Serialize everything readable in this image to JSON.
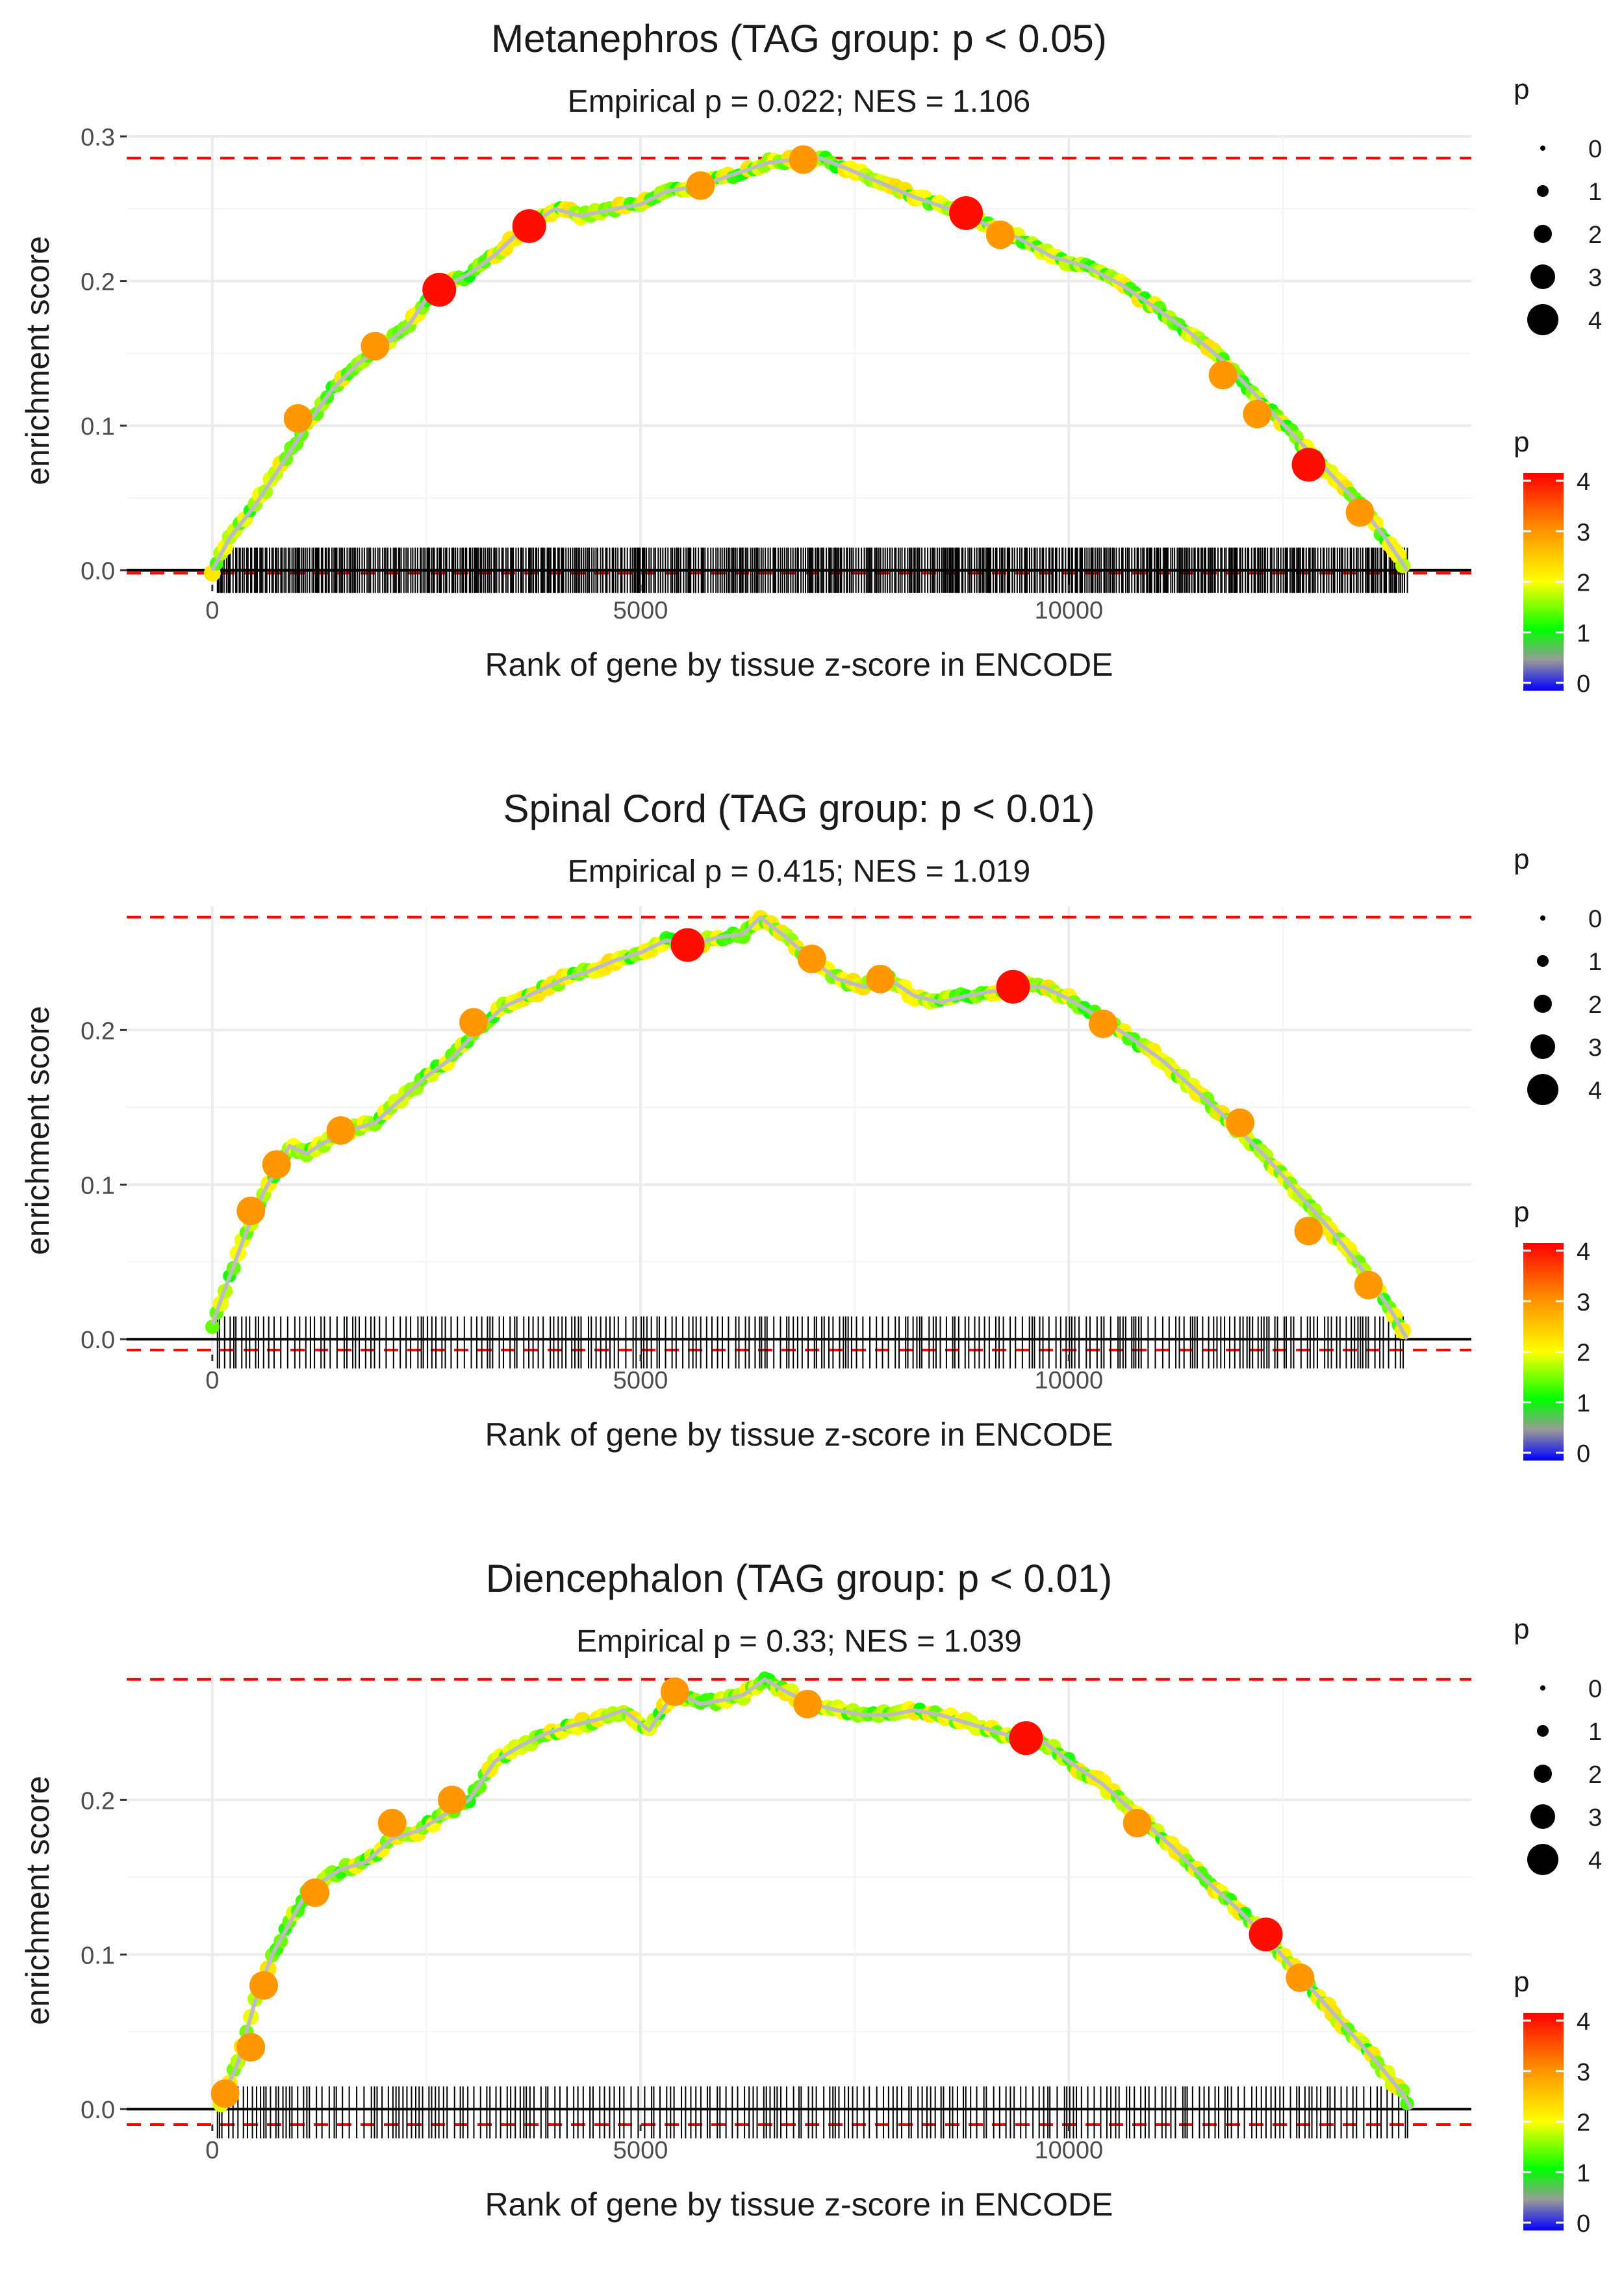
{
  "chart_data": [
    {
      "type": "line",
      "title": "Metanephros (TAG group: p < 0.05)",
      "subtitle": "Empirical p = 0.022; NES = 1.106",
      "xlabel": "Rank of gene by tissue z-score in ENCODE",
      "ylabel": "enrichment score",
      "xlim": [
        -1000,
        14700
      ],
      "ylim": [
        -0.01,
        0.3
      ],
      "x_ticks": [
        0,
        5000,
        10000
      ],
      "y_ticks": [
        0.0,
        0.1,
        0.2,
        0.3
      ],
      "x_tick_labels": [
        "0",
        "5000",
        "10000"
      ],
      "y_tick_labels": [
        "0.0",
        "0.1",
        "0.2",
        "0.3"
      ],
      "max_es": 0.285,
      "min_es": -0.002,
      "gene_count": 14000,
      "hit_density": "dense",
      "curve": [
        [
          0,
          0
        ],
        [
          200,
          0.022
        ],
        [
          500,
          0.045
        ],
        [
          800,
          0.072
        ],
        [
          1100,
          0.1
        ],
        [
          1400,
          0.125
        ],
        [
          1700,
          0.143
        ],
        [
          2000,
          0.155
        ],
        [
          2300,
          0.17
        ],
        [
          2500,
          0.188
        ],
        [
          2700,
          0.196
        ],
        [
          3000,
          0.205
        ],
        [
          3300,
          0.218
        ],
        [
          3600,
          0.235
        ],
        [
          3800,
          0.242
        ],
        [
          4000,
          0.25
        ],
        [
          4300,
          0.245
        ],
        [
          4700,
          0.25
        ],
        [
          5000,
          0.253
        ],
        [
          5300,
          0.262
        ],
        [
          5600,
          0.265
        ],
        [
          5900,
          0.27
        ],
        [
          6200,
          0.276
        ],
        [
          6500,
          0.282
        ],
        [
          6800,
          0.284
        ],
        [
          7100,
          0.285
        ],
        [
          7400,
          0.278
        ],
        [
          7800,
          0.268
        ],
        [
          8200,
          0.258
        ],
        [
          8600,
          0.25
        ],
        [
          9000,
          0.24
        ],
        [
          9400,
          0.23
        ],
        [
          9800,
          0.217
        ],
        [
          10200,
          0.21
        ],
        [
          10600,
          0.198
        ],
        [
          11000,
          0.182
        ],
        [
          11400,
          0.165
        ],
        [
          11800,
          0.145
        ],
        [
          12200,
          0.12
        ],
        [
          12600,
          0.095
        ],
        [
          13000,
          0.07
        ],
        [
          13400,
          0.045
        ],
        [
          13700,
          0.022
        ],
        [
          13950,
          0
        ]
      ],
      "highlights": [
        [
          2650,
          0.194,
          4
        ],
        [
          3700,
          0.238,
          4
        ],
        [
          8800,
          0.247,
          4
        ],
        [
          12800,
          0.073,
          4
        ],
        [
          1000,
          0.105,
          3
        ],
        [
          1900,
          0.155,
          3
        ],
        [
          5700,
          0.266,
          3
        ],
        [
          6900,
          0.284,
          3
        ],
        [
          9200,
          0.232,
          3
        ],
        [
          11800,
          0.135,
          3
        ],
        [
          12200,
          0.108,
          3
        ],
        [
          13400,
          0.04,
          3
        ]
      ],
      "legend_size": {
        "title": "p",
        "labels": [
          "0",
          "1",
          "2",
          "3",
          "4"
        ]
      },
      "legend_color": {
        "title": "p",
        "labels": [
          "4",
          "3",
          "2",
          "1",
          "0"
        ],
        "colors": [
          "#ff0000",
          "#ff8c00",
          "#ffff00",
          "#00ff00",
          "#999999",
          "#0000ff"
        ]
      }
    },
    {
      "type": "line",
      "title": "Spinal Cord (TAG group: p < 0.01)",
      "subtitle": "Empirical p = 0.415; NES = 1.019",
      "xlabel": "Rank of gene by tissue z-score in ENCODE",
      "ylabel": "enrichment score",
      "xlim": [
        -1000,
        14700
      ],
      "ylim": [
        -0.01,
        0.28
      ],
      "x_ticks": [
        0,
        5000,
        10000
      ],
      "y_ticks": [
        0.0,
        0.1,
        0.2
      ],
      "x_tick_labels": [
        "0",
        "5000",
        "10000"
      ],
      "y_tick_labels": [
        "0.0",
        "0.1",
        "0.2"
      ],
      "max_es": 0.273,
      "min_es": -0.007,
      "gene_count": 14000,
      "hit_density": "medium",
      "curve": [
        [
          0,
          0.01
        ],
        [
          200,
          0.04
        ],
        [
          400,
          0.07
        ],
        [
          600,
          0.095
        ],
        [
          900,
          0.125
        ],
        [
          1100,
          0.12
        ],
        [
          1300,
          0.127
        ],
        [
          1600,
          0.135
        ],
        [
          1900,
          0.14
        ],
        [
          2200,
          0.155
        ],
        [
          2500,
          0.17
        ],
        [
          2800,
          0.182
        ],
        [
          3100,
          0.2
        ],
        [
          3400,
          0.215
        ],
        [
          3800,
          0.225
        ],
        [
          4100,
          0.233
        ],
        [
          4400,
          0.238
        ],
        [
          4700,
          0.245
        ],
        [
          5000,
          0.25
        ],
        [
          5300,
          0.258
        ],
        [
          5600,
          0.255
        ],
        [
          5900,
          0.26
        ],
        [
          6200,
          0.262
        ],
        [
          6400,
          0.273
        ],
        [
          6700,
          0.26
        ],
        [
          7000,
          0.245
        ],
        [
          7300,
          0.233
        ],
        [
          7600,
          0.228
        ],
        [
          7900,
          0.233
        ],
        [
          8200,
          0.222
        ],
        [
          8500,
          0.218
        ],
        [
          8800,
          0.222
        ],
        [
          9100,
          0.225
        ],
        [
          9400,
          0.228
        ],
        [
          9700,
          0.228
        ],
        [
          10000,
          0.22
        ],
        [
          10300,
          0.21
        ],
        [
          10700,
          0.196
        ],
        [
          11100,
          0.18
        ],
        [
          11500,
          0.16
        ],
        [
          11900,
          0.14
        ],
        [
          12300,
          0.118
        ],
        [
          12700,
          0.093
        ],
        [
          13100,
          0.068
        ],
        [
          13500,
          0.04
        ],
        [
          13800,
          0.015
        ],
        [
          13950,
          0
        ]
      ],
      "highlights": [
        [
          5550,
          0.255,
          4
        ],
        [
          9350,
          0.228,
          4
        ],
        [
          450,
          0.083,
          3
        ],
        [
          750,
          0.113,
          3
        ],
        [
          1500,
          0.135,
          3
        ],
        [
          3050,
          0.205,
          3
        ],
        [
          7000,
          0.246,
          3
        ],
        [
          7800,
          0.233,
          3
        ],
        [
          10400,
          0.204,
          3
        ],
        [
          12000,
          0.14,
          3
        ],
        [
          12800,
          0.07,
          3
        ],
        [
          13500,
          0.035,
          3
        ]
      ],
      "legend_size": {
        "title": "p",
        "labels": [
          "0",
          "1",
          "2",
          "3",
          "4"
        ]
      },
      "legend_color": {
        "title": "p",
        "labels": [
          "4",
          "3",
          "2",
          "1",
          "0"
        ],
        "colors": [
          "#ff0000",
          "#ff8c00",
          "#ffff00",
          "#00ff00",
          "#999999",
          "#0000ff"
        ]
      }
    },
    {
      "type": "line",
      "title": "Diencephalon (TAG group: p < 0.01)",
      "subtitle": "Empirical p = 0.33; NES = 1.039",
      "xlabel": "Rank of gene by tissue z-score in ENCODE",
      "ylabel": "enrichment score",
      "xlim": [
        -1000,
        14700
      ],
      "ylim": [
        -0.01,
        0.28
      ],
      "x_ticks": [
        0,
        5000,
        10000
      ],
      "y_ticks": [
        0.0,
        0.1,
        0.2
      ],
      "x_tick_labels": [
        "0",
        "5000",
        "10000"
      ],
      "y_tick_labels": [
        "0.0",
        "0.1",
        "0.2"
      ],
      "max_es": 0.278,
      "min_es": -0.01,
      "gene_count": 14000,
      "hit_density": "medium",
      "curve": [
        [
          100,
          0.005
        ],
        [
          300,
          0.03
        ],
        [
          500,
          0.07
        ],
        [
          700,
          0.1
        ],
        [
          900,
          0.12
        ],
        [
          1100,
          0.14
        ],
        [
          1300,
          0.148
        ],
        [
          1500,
          0.155
        ],
        [
          1800,
          0.16
        ],
        [
          2100,
          0.175
        ],
        [
          2400,
          0.18
        ],
        [
          2700,
          0.19
        ],
        [
          3000,
          0.2
        ],
        [
          3300,
          0.225
        ],
        [
          3600,
          0.235
        ],
        [
          3900,
          0.243
        ],
        [
          4200,
          0.248
        ],
        [
          4500,
          0.252
        ],
        [
          4800,
          0.258
        ],
        [
          5100,
          0.245
        ],
        [
          5400,
          0.27
        ],
        [
          5700,
          0.262
        ],
        [
          6000,
          0.265
        ],
        [
          6200,
          0.268
        ],
        [
          6450,
          0.278
        ],
        [
          6700,
          0.27
        ],
        [
          7000,
          0.262
        ],
        [
          7300,
          0.258
        ],
        [
          7600,
          0.255
        ],
        [
          7900,
          0.255
        ],
        [
          8200,
          0.258
        ],
        [
          8500,
          0.255
        ],
        [
          8800,
          0.25
        ],
        [
          9100,
          0.245
        ],
        [
          9400,
          0.24
        ],
        [
          9700,
          0.238
        ],
        [
          10000,
          0.225
        ],
        [
          10400,
          0.21
        ],
        [
          10800,
          0.19
        ],
        [
          11200,
          0.17
        ],
        [
          11600,
          0.148
        ],
        [
          12000,
          0.128
        ],
        [
          12400,
          0.105
        ],
        [
          12800,
          0.08
        ],
        [
          13200,
          0.055
        ],
        [
          13600,
          0.03
        ],
        [
          13900,
          0.01
        ],
        [
          14000,
          0
        ]
      ],
      "highlights": [
        [
          12300,
          0.113,
          4
        ],
        [
          9500,
          0.24,
          4
        ],
        [
          150,
          0.01,
          3
        ],
        [
          450,
          0.04,
          3
        ],
        [
          600,
          0.08,
          3
        ],
        [
          1200,
          0.14,
          3
        ],
        [
          2100,
          0.185,
          3
        ],
        [
          2800,
          0.2,
          3
        ],
        [
          5400,
          0.27,
          3
        ],
        [
          6950,
          0.262,
          3
        ],
        [
          10800,
          0.185,
          3
        ],
        [
          12700,
          0.085,
          3
        ]
      ],
      "legend_size": {
        "title": "p",
        "labels": [
          "0",
          "1",
          "2",
          "3",
          "4"
        ]
      },
      "legend_color": {
        "title": "p",
        "labels": [
          "4",
          "3",
          "2",
          "1",
          "0"
        ],
        "colors": [
          "#ff0000",
          "#ff8c00",
          "#ffff00",
          "#00ff00",
          "#999999",
          "#0000ff"
        ]
      }
    }
  ]
}
